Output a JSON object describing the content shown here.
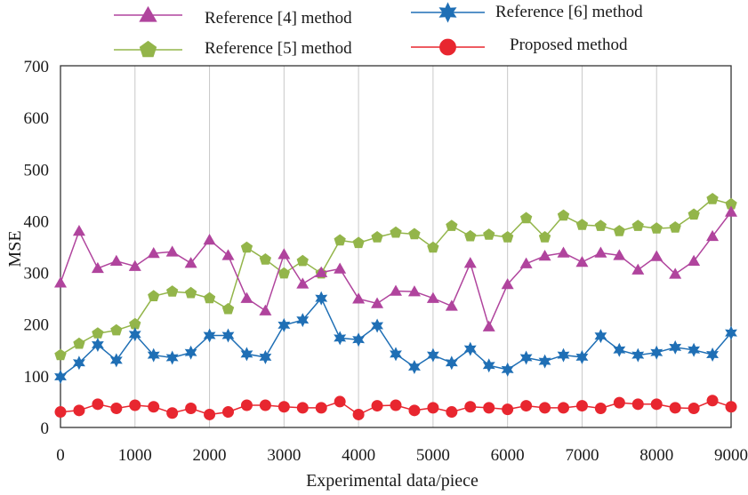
{
  "chart_data": {
    "type": "line",
    "title": "",
    "xlabel": "Experimental data/piece",
    "ylabel": "MSE",
    "xlim": [
      0,
      9000
    ],
    "ylim": [
      0,
      700
    ],
    "xticks": [
      "0",
      "1000",
      "2000",
      "3000",
      "4000",
      "5000",
      "6000",
      "7000",
      "8000",
      "9000"
    ],
    "yticks": [
      "0",
      "100",
      "200",
      "300",
      "400",
      "500",
      "600",
      "700"
    ],
    "grid": "vertical",
    "legend_position": "top",
    "x": [
      0,
      250,
      500,
      750,
      1000,
      1250,
      1500,
      1750,
      2000,
      2250,
      2500,
      2750,
      3000,
      3250,
      3500,
      3750,
      4000,
      4250,
      4500,
      4750,
      5000,
      5250,
      5500,
      5750,
      6000,
      6250,
      6500,
      6750,
      7000,
      7250,
      7500,
      7750,
      8000,
      8250,
      8500,
      8750,
      9000
    ],
    "series": [
      {
        "name": "Reference [4] method",
        "color": "#b0449d",
        "marker": "triangle",
        "values": [
          280,
          380,
          308,
          322,
          312,
          337,
          340,
          318,
          363,
          333,
          250,
          226,
          335,
          278,
          300,
          307,
          249,
          240,
          264,
          263,
          250,
          235,
          318,
          195,
          277,
          317,
          332,
          338,
          320,
          338,
          333,
          305,
          331,
          297,
          322,
          370,
          417
        ]
      },
      {
        "name": "Reference [5] method",
        "color": "#93b54a",
        "marker": "pentagon",
        "values": [
          140,
          162,
          182,
          188,
          200,
          254,
          263,
          260,
          250,
          229,
          348,
          325,
          298,
          322,
          298,
          362,
          357,
          368,
          377,
          374,
          348,
          390,
          370,
          373,
          368,
          405,
          368,
          410,
          392,
          390,
          380,
          390,
          385,
          387,
          412,
          442,
          432
        ]
      },
      {
        "name": "Reference [6] method",
        "color": "#1f6fb5",
        "marker": "star",
        "values": [
          98,
          125,
          160,
          130,
          180,
          140,
          135,
          145,
          178,
          178,
          142,
          136,
          198,
          208,
          250,
          173,
          170,
          197,
          142,
          117,
          140,
          125,
          152,
          120,
          112,
          135,
          128,
          140,
          136,
          177,
          150,
          140,
          145,
          155,
          150,
          141,
          183
        ]
      },
      {
        "name": "Proposed method",
        "color": "#e8262f",
        "marker": "circle",
        "values": [
          30,
          33,
          45,
          37,
          43,
          40,
          28,
          37,
          25,
          30,
          43,
          43,
          40,
          38,
          38,
          50,
          25,
          42,
          43,
          33,
          38,
          30,
          40,
          38,
          35,
          42,
          38,
          38,
          42,
          37,
          48,
          45,
          45,
          38,
          37,
          52,
          40
        ]
      }
    ]
  }
}
